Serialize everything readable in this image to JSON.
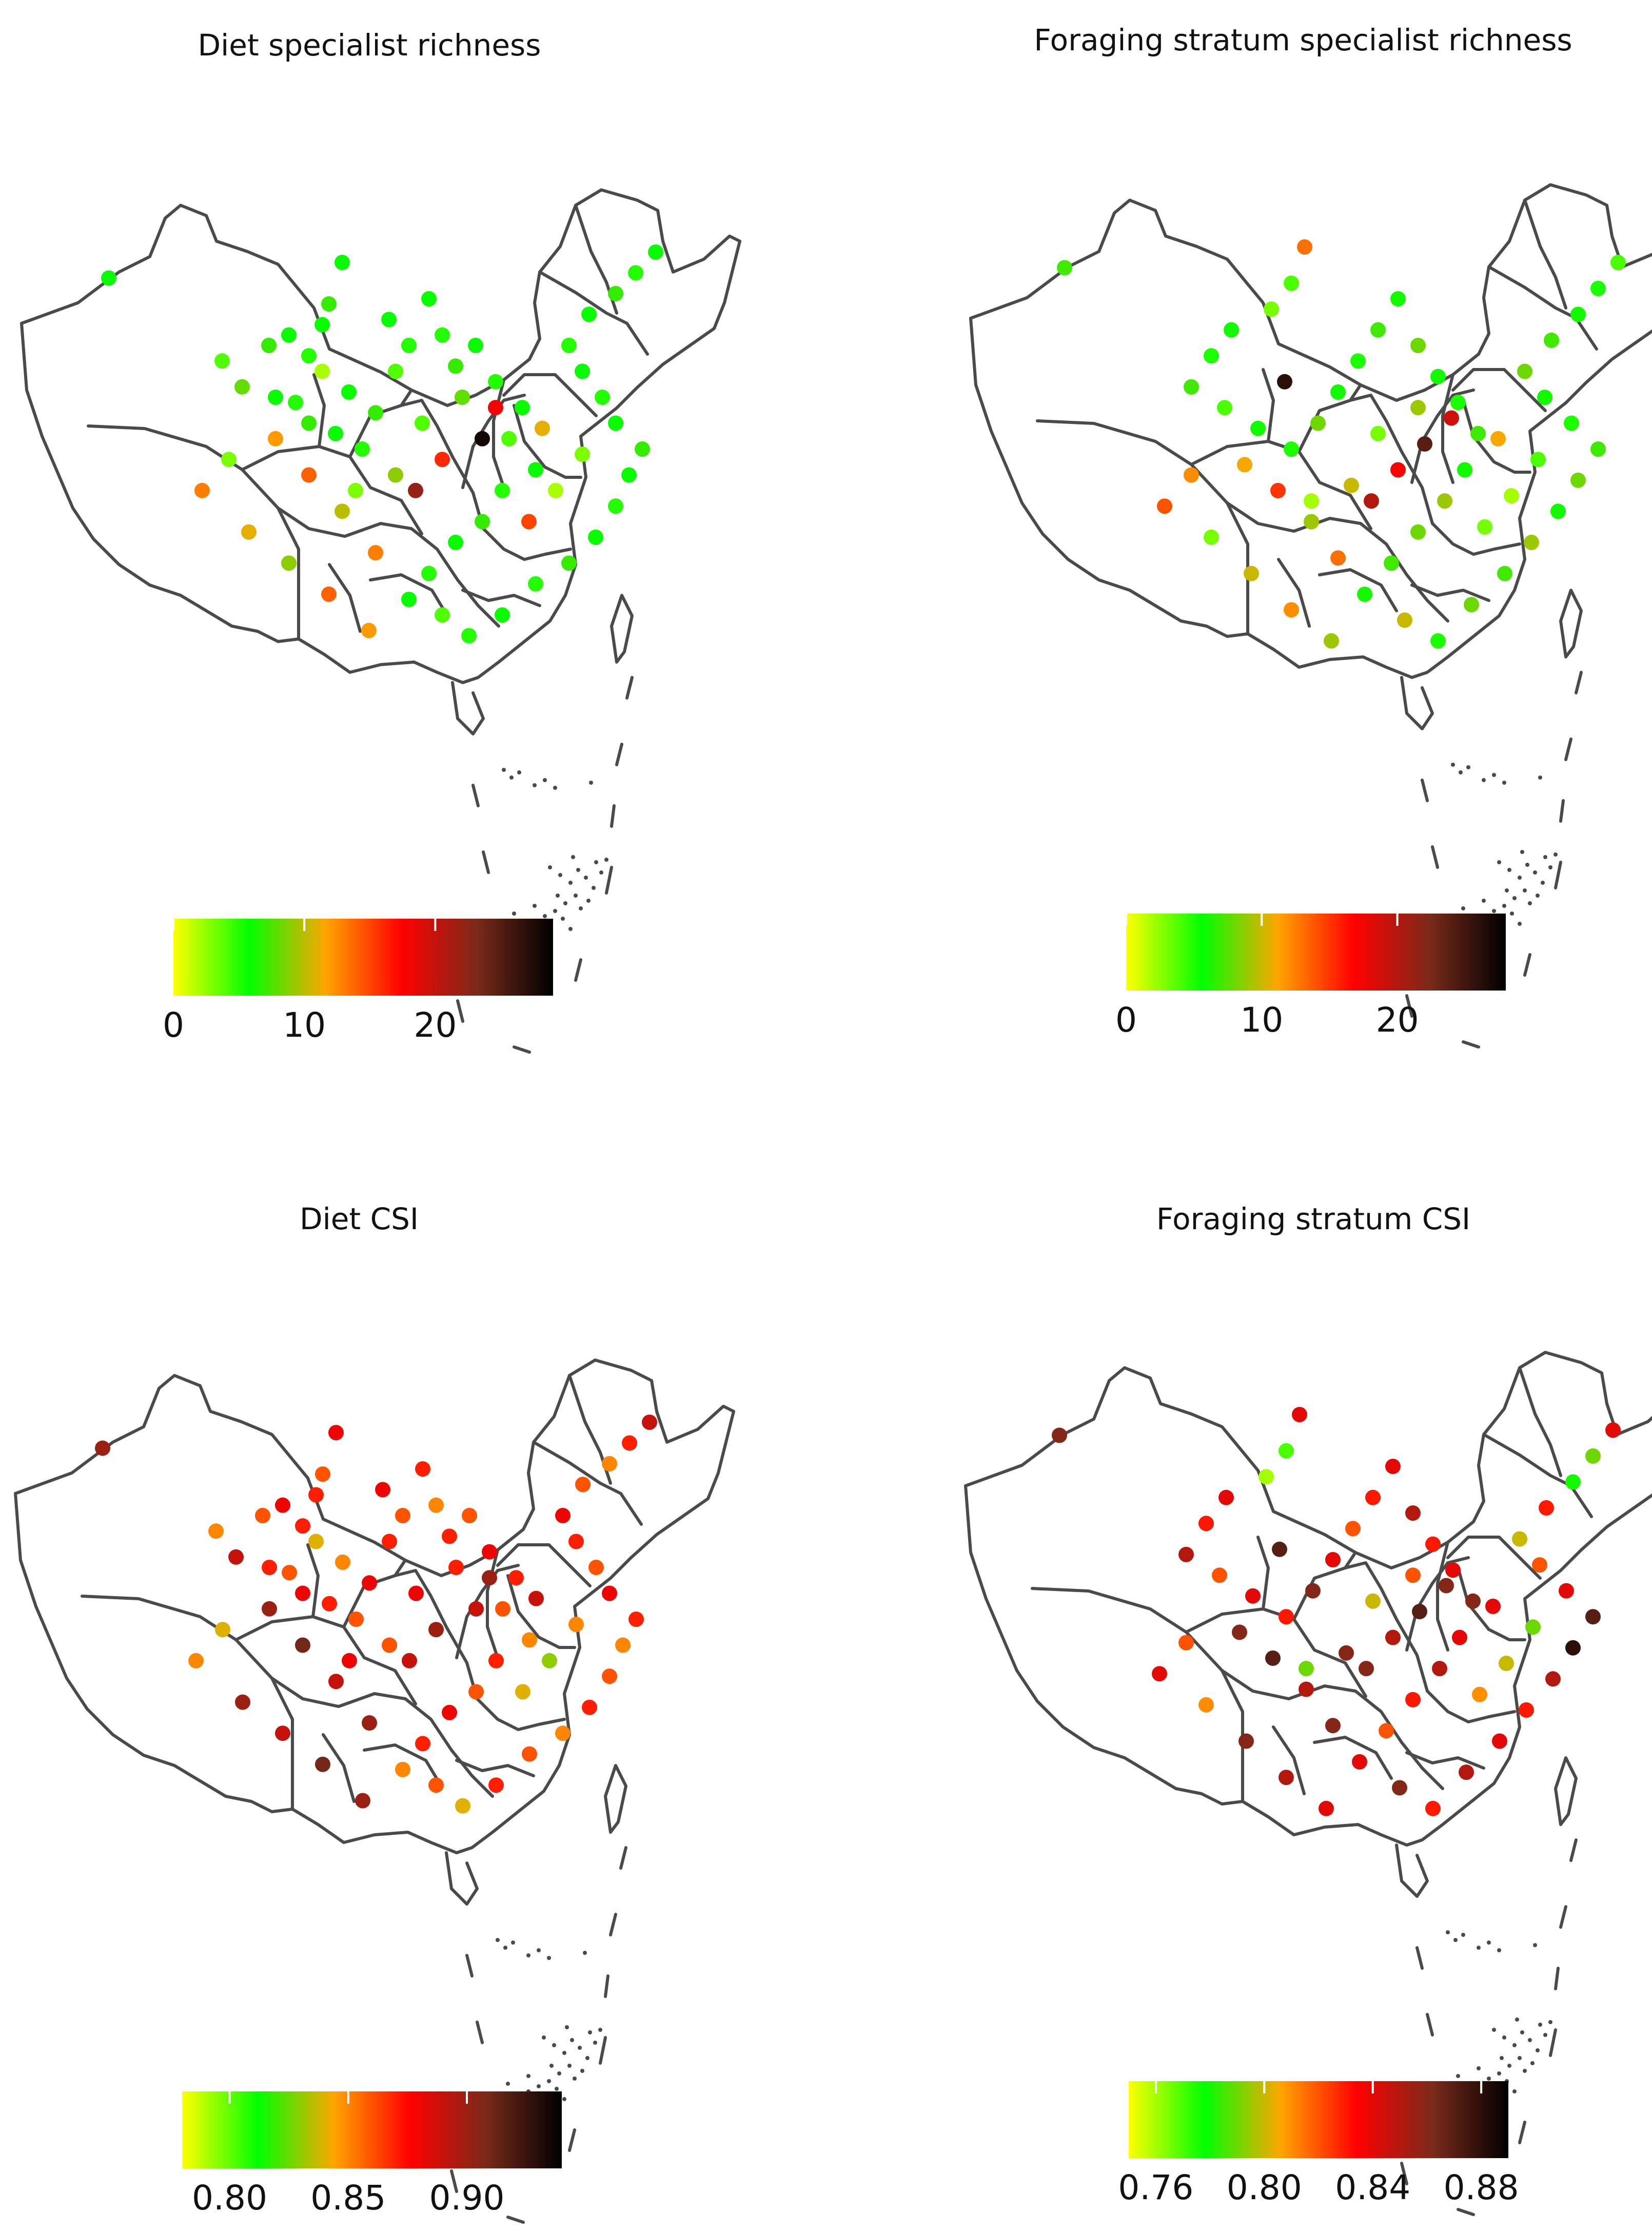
{
  "colormap": [
    "#ffff00",
    "#00ff00",
    "#ffa500",
    "#ff0000",
    "#7a2a1a",
    "#000000"
  ],
  "panels": [
    {
      "title": "Diet specialist richness",
      "colorbar": {
        "min": 0,
        "max": 29,
        "ticks": [
          0,
          10,
          20
        ],
        "tick_labels": [
          "0",
          "10",
          "20"
        ]
      },
      "points": [
        [
          0.1,
          0.17,
          6
        ],
        [
          0.45,
          0.14,
          6
        ],
        [
          0.43,
          0.22,
          7
        ],
        [
          0.42,
          0.26,
          6
        ],
        [
          0.34,
          0.3,
          7
        ],
        [
          0.37,
          0.28,
          6
        ],
        [
          0.4,
          0.32,
          5
        ],
        [
          0.27,
          0.33,
          4
        ],
        [
          0.3,
          0.38,
          8
        ],
        [
          0.35,
          0.4,
          6
        ],
        [
          0.38,
          0.41,
          5
        ],
        [
          0.4,
          0.45,
          7
        ],
        [
          0.44,
          0.47,
          6
        ],
        [
          0.48,
          0.5,
          5
        ],
        [
          0.5,
          0.43,
          7
        ],
        [
          0.46,
          0.39,
          6
        ],
        [
          0.53,
          0.35,
          4
        ],
        [
          0.55,
          0.3,
          5
        ],
        [
          0.52,
          0.25,
          6
        ],
        [
          0.58,
          0.21,
          6
        ],
        [
          0.6,
          0.28,
          5
        ],
        [
          0.62,
          0.34,
          7
        ],
        [
          0.65,
          0.3,
          6
        ],
        [
          0.68,
          0.37,
          5
        ],
        [
          0.72,
          0.42,
          6
        ],
        [
          0.7,
          0.48,
          4
        ],
        [
          0.74,
          0.54,
          6
        ],
        [
          0.69,
          0.58,
          5
        ],
        [
          0.66,
          0.64,
          7
        ],
        [
          0.62,
          0.68,
          6
        ],
        [
          0.58,
          0.74,
          5
        ],
        [
          0.55,
          0.79,
          6
        ],
        [
          0.6,
          0.82,
          4
        ],
        [
          0.64,
          0.86,
          5
        ],
        [
          0.69,
          0.82,
          6
        ],
        [
          0.74,
          0.76,
          5
        ],
        [
          0.79,
          0.72,
          7
        ],
        [
          0.83,
          0.67,
          6
        ],
        [
          0.86,
          0.61,
          5
        ],
        [
          0.88,
          0.55,
          6
        ],
        [
          0.9,
          0.5,
          7
        ],
        [
          0.86,
          0.45,
          6
        ],
        [
          0.84,
          0.4,
          5
        ],
        [
          0.81,
          0.35,
          6
        ],
        [
          0.79,
          0.3,
          5
        ],
        [
          0.82,
          0.24,
          6
        ],
        [
          0.86,
          0.2,
          7
        ],
        [
          0.89,
          0.16,
          5
        ],
        [
          0.92,
          0.12,
          6
        ],
        [
          0.35,
          0.48,
          12
        ],
        [
          0.4,
          0.55,
          14
        ],
        [
          0.45,
          0.62,
          10
        ],
        [
          0.5,
          0.7,
          13
        ],
        [
          0.28,
          0.52,
          3
        ],
        [
          0.24,
          0.58,
          13
        ],
        [
          0.31,
          0.66,
          11
        ],
        [
          0.37,
          0.72,
          9
        ],
        [
          0.43,
          0.78,
          14
        ],
        [
          0.49,
          0.85,
          12
        ],
        [
          0.56,
          0.58,
          22
        ],
        [
          0.6,
          0.52,
          16
        ],
        [
          0.66,
          0.48,
          28
        ],
        [
          0.73,
          0.64,
          15
        ],
        [
          0.77,
          0.58,
          2
        ],
        [
          0.81,
          0.51,
          3
        ],
        [
          0.75,
          0.46,
          11
        ],
        [
          0.68,
          0.42,
          18
        ],
        [
          0.63,
          0.4,
          8
        ],
        [
          0.57,
          0.45,
          4
        ],
        [
          0.53,
          0.55,
          9
        ],
        [
          0.47,
          0.58,
          3
        ],
        [
          0.42,
          0.35,
          2
        ]
      ]
    },
    {
      "title": "Foraging stratum specialist richness",
      "colorbar": {
        "min": 0,
        "max": 28,
        "ticks": [
          0,
          10,
          20
        ],
        "tick_labels": [
          "0",
          "10",
          "20"
        ]
      },
      "points": [
        [
          0.11,
          0.16,
          7
        ],
        [
          0.47,
          0.12,
          13
        ],
        [
          0.45,
          0.19,
          4
        ],
        [
          0.42,
          0.24,
          3
        ],
        [
          0.36,
          0.28,
          6
        ],
        [
          0.33,
          0.33,
          5
        ],
        [
          0.3,
          0.39,
          7
        ],
        [
          0.35,
          0.43,
          4
        ],
        [
          0.4,
          0.47,
          6
        ],
        [
          0.45,
          0.51,
          5
        ],
        [
          0.49,
          0.46,
          8
        ],
        [
          0.52,
          0.4,
          6
        ],
        [
          0.55,
          0.34,
          5
        ],
        [
          0.58,
          0.28,
          7
        ],
        [
          0.61,
          0.22,
          6
        ],
        [
          0.64,
          0.31,
          8
        ],
        [
          0.67,
          0.37,
          6
        ],
        [
          0.7,
          0.42,
          5
        ],
        [
          0.73,
          0.48,
          7
        ],
        [
          0.71,
          0.55,
          6
        ],
        [
          0.68,
          0.61,
          9
        ],
        [
          0.64,
          0.67,
          8
        ],
        [
          0.6,
          0.73,
          7
        ],
        [
          0.56,
          0.79,
          6
        ],
        [
          0.62,
          0.84,
          10
        ],
        [
          0.67,
          0.88,
          5
        ],
        [
          0.72,
          0.81,
          8
        ],
        [
          0.77,
          0.75,
          7
        ],
        [
          0.81,
          0.69,
          9
        ],
        [
          0.85,
          0.63,
          6
        ],
        [
          0.88,
          0.57,
          8
        ],
        [
          0.91,
          0.51,
          7
        ],
        [
          0.87,
          0.46,
          5
        ],
        [
          0.83,
          0.41,
          6
        ],
        [
          0.8,
          0.36,
          8
        ],
        [
          0.84,
          0.3,
          7
        ],
        [
          0.88,
          0.25,
          6
        ],
        [
          0.91,
          0.2,
          5
        ],
        [
          0.94,
          0.15,
          4
        ],
        [
          0.38,
          0.54,
          11
        ],
        [
          0.43,
          0.59,
          15
        ],
        [
          0.48,
          0.65,
          9
        ],
        [
          0.52,
          0.72,
          13
        ],
        [
          0.3,
          0.56,
          12
        ],
        [
          0.26,
          0.62,
          14
        ],
        [
          0.33,
          0.68,
          3
        ],
        [
          0.39,
          0.75,
          10
        ],
        [
          0.45,
          0.82,
          12
        ],
        [
          0.51,
          0.88,
          9
        ],
        [
          0.57,
          0.61,
          20
        ],
        [
          0.61,
          0.55,
          17
        ],
        [
          0.65,
          0.5,
          24
        ],
        [
          0.74,
          0.66,
          3
        ],
        [
          0.78,
          0.6,
          2
        ],
        [
          0.82,
          0.53,
          4
        ],
        [
          0.76,
          0.49,
          11
        ],
        [
          0.69,
          0.45,
          19
        ],
        [
          0.64,
          0.43,
          9
        ],
        [
          0.58,
          0.48,
          3
        ],
        [
          0.54,
          0.58,
          10
        ],
        [
          0.48,
          0.61,
          2
        ],
        [
          0.44,
          0.38,
          26
        ]
      ]
    },
    {
      "title": "Diet CSI",
      "colorbar": {
        "min": 0.78,
        "max": 0.94,
        "ticks": [
          0.8,
          0.85,
          0.9
        ],
        "tick_labels": [
          "0.80",
          "0.85",
          "0.90"
        ]
      },
      "points": [
        [
          0.1,
          0.17,
          0.9
        ],
        [
          0.45,
          0.14,
          0.88
        ],
        [
          0.43,
          0.22,
          0.86
        ],
        [
          0.42,
          0.26,
          0.87
        ],
        [
          0.34,
          0.3,
          0.86
        ],
        [
          0.37,
          0.28,
          0.88
        ],
        [
          0.4,
          0.32,
          0.87
        ],
        [
          0.27,
          0.33,
          0.85
        ],
        [
          0.3,
          0.38,
          0.89
        ],
        [
          0.35,
          0.4,
          0.87
        ],
        [
          0.38,
          0.41,
          0.86
        ],
        [
          0.4,
          0.45,
          0.88
        ],
        [
          0.44,
          0.47,
          0.87
        ],
        [
          0.48,
          0.5,
          0.86
        ],
        [
          0.5,
          0.43,
          0.88
        ],
        [
          0.46,
          0.39,
          0.85
        ],
        [
          0.53,
          0.35,
          0.87
        ],
        [
          0.55,
          0.3,
          0.86
        ],
        [
          0.52,
          0.25,
          0.88
        ],
        [
          0.58,
          0.21,
          0.87
        ],
        [
          0.6,
          0.28,
          0.85
        ],
        [
          0.62,
          0.34,
          0.87
        ],
        [
          0.65,
          0.3,
          0.86
        ],
        [
          0.68,
          0.37,
          0.88
        ],
        [
          0.72,
          0.42,
          0.87
        ],
        [
          0.7,
          0.48,
          0.86
        ],
        [
          0.74,
          0.54,
          0.85
        ],
        [
          0.69,
          0.58,
          0.87
        ],
        [
          0.66,
          0.64,
          0.86
        ],
        [
          0.62,
          0.68,
          0.88
        ],
        [
          0.58,
          0.74,
          0.87
        ],
        [
          0.55,
          0.79,
          0.85
        ],
        [
          0.6,
          0.82,
          0.86
        ],
        [
          0.64,
          0.86,
          0.84
        ],
        [
          0.69,
          0.82,
          0.87
        ],
        [
          0.74,
          0.76,
          0.86
        ],
        [
          0.79,
          0.72,
          0.85
        ],
        [
          0.83,
          0.67,
          0.87
        ],
        [
          0.86,
          0.61,
          0.86
        ],
        [
          0.88,
          0.55,
          0.85
        ],
        [
          0.9,
          0.5,
          0.87
        ],
        [
          0.86,
          0.45,
          0.88
        ],
        [
          0.84,
          0.4,
          0.86
        ],
        [
          0.81,
          0.35,
          0.87
        ],
        [
          0.79,
          0.3,
          0.88
        ],
        [
          0.82,
          0.24,
          0.86
        ],
        [
          0.86,
          0.2,
          0.85
        ],
        [
          0.89,
          0.16,
          0.87
        ],
        [
          0.92,
          0.12,
          0.89
        ],
        [
          0.35,
          0.48,
          0.9
        ],
        [
          0.4,
          0.55,
          0.91
        ],
        [
          0.45,
          0.62,
          0.89
        ],
        [
          0.5,
          0.7,
          0.9
        ],
        [
          0.28,
          0.52,
          0.84
        ],
        [
          0.24,
          0.58,
          0.85
        ],
        [
          0.31,
          0.66,
          0.9
        ],
        [
          0.37,
          0.72,
          0.89
        ],
        [
          0.43,
          0.78,
          0.91
        ],
        [
          0.49,
          0.85,
          0.9
        ],
        [
          0.56,
          0.58,
          0.89
        ],
        [
          0.6,
          0.52,
          0.9
        ],
        [
          0.66,
          0.48,
          0.89
        ],
        [
          0.73,
          0.64,
          0.84
        ],
        [
          0.77,
          0.58,
          0.83
        ],
        [
          0.81,
          0.51,
          0.85
        ],
        [
          0.75,
          0.46,
          0.89
        ],
        [
          0.68,
          0.42,
          0.9
        ],
        [
          0.63,
          0.4,
          0.87
        ],
        [
          0.57,
          0.45,
          0.88
        ],
        [
          0.53,
          0.55,
          0.86
        ],
        [
          0.47,
          0.58,
          0.88
        ],
        [
          0.42,
          0.35,
          0.84
        ]
      ]
    },
    {
      "title": "Foraging stratum CSI",
      "colorbar": {
        "min": 0.75,
        "max": 0.89,
        "ticks": [
          0.76,
          0.8,
          0.84,
          0.88
        ],
        "tick_labels": [
          "0.76",
          "0.80",
          "0.84",
          "0.88"
        ]
      },
      "points": [
        [
          0.11,
          0.16,
          0.86
        ],
        [
          0.47,
          0.12,
          0.84
        ],
        [
          0.45,
          0.19,
          0.77
        ],
        [
          0.42,
          0.24,
          0.76
        ],
        [
          0.36,
          0.28,
          0.84
        ],
        [
          0.33,
          0.33,
          0.83
        ],
        [
          0.3,
          0.39,
          0.85
        ],
        [
          0.35,
          0.43,
          0.82
        ],
        [
          0.4,
          0.47,
          0.84
        ],
        [
          0.45,
          0.51,
          0.83
        ],
        [
          0.49,
          0.46,
          0.86
        ],
        [
          0.52,
          0.4,
          0.84
        ],
        [
          0.55,
          0.34,
          0.82
        ],
        [
          0.58,
          0.28,
          0.83
        ],
        [
          0.61,
          0.22,
          0.84
        ],
        [
          0.64,
          0.31,
          0.85
        ],
        [
          0.67,
          0.37,
          0.83
        ],
        [
          0.7,
          0.42,
          0.84
        ],
        [
          0.73,
          0.48,
          0.86
        ],
        [
          0.71,
          0.55,
          0.84
        ],
        [
          0.68,
          0.61,
          0.85
        ],
        [
          0.64,
          0.67,
          0.83
        ],
        [
          0.6,
          0.73,
          0.82
        ],
        [
          0.56,
          0.79,
          0.84
        ],
        [
          0.62,
          0.84,
          0.86
        ],
        [
          0.67,
          0.88,
          0.83
        ],
        [
          0.72,
          0.81,
          0.85
        ],
        [
          0.77,
          0.75,
          0.84
        ],
        [
          0.81,
          0.69,
          0.83
        ],
        [
          0.85,
          0.63,
          0.85
        ],
        [
          0.88,
          0.57,
          0.88
        ],
        [
          0.91,
          0.51,
          0.87
        ],
        [
          0.87,
          0.46,
          0.84
        ],
        [
          0.83,
          0.41,
          0.82
        ],
        [
          0.8,
          0.36,
          0.8
        ],
        [
          0.84,
          0.3,
          0.83
        ],
        [
          0.88,
          0.25,
          0.78
        ],
        [
          0.91,
          0.2,
          0.79
        ],
        [
          0.94,
          0.15,
          0.84
        ],
        [
          0.38,
          0.54,
          0.86
        ],
        [
          0.43,
          0.59,
          0.87
        ],
        [
          0.48,
          0.65,
          0.85
        ],
        [
          0.52,
          0.72,
          0.86
        ],
        [
          0.3,
          0.56,
          0.82
        ],
        [
          0.26,
          0.62,
          0.84
        ],
        [
          0.33,
          0.68,
          0.81
        ],
        [
          0.39,
          0.75,
          0.86
        ],
        [
          0.45,
          0.82,
          0.85
        ],
        [
          0.51,
          0.88,
          0.84
        ],
        [
          0.57,
          0.61,
          0.86
        ],
        [
          0.61,
          0.55,
          0.85
        ],
        [
          0.65,
          0.5,
          0.87
        ],
        [
          0.74,
          0.66,
          0.81
        ],
        [
          0.78,
          0.6,
          0.8
        ],
        [
          0.82,
          0.53,
          0.79
        ],
        [
          0.76,
          0.49,
          0.84
        ],
        [
          0.69,
          0.45,
          0.86
        ],
        [
          0.64,
          0.43,
          0.82
        ],
        [
          0.58,
          0.48,
          0.8
        ],
        [
          0.54,
          0.58,
          0.86
        ],
        [
          0.48,
          0.61,
          0.79
        ],
        [
          0.44,
          0.38,
          0.87
        ]
      ]
    }
  ]
}
